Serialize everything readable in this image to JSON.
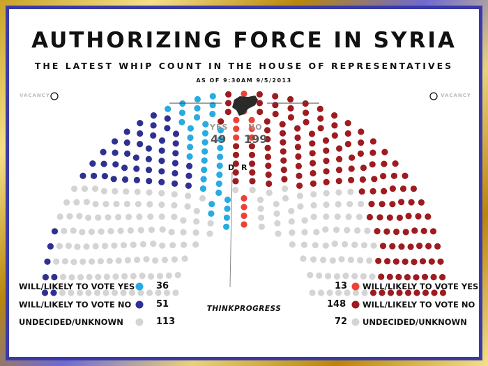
{
  "title": "AUTHORIZING FORCE IN SYRIA",
  "subtitle": "THE LATEST WHIP COUNT IN THE HOUSE OF REPRESENTATIVES",
  "as_of": "AS OF 9:30AM 9/5/2013",
  "vacancy_label": "VACANCY",
  "totals": {
    "yes_label": "YES",
    "yes_value": "49",
    "no_label": "NO",
    "no_value": "199"
  },
  "party_labels": {
    "dem": "D",
    "rep": "R"
  },
  "brand": "THINKPROGRESS",
  "colors": {
    "dem_yes": "#29abe2",
    "dem_no": "#2e3192",
    "rep_yes": "#ef4136",
    "rep_no": "#9e1b1f",
    "undecided": "#d4d4d4",
    "frame_gold": "#c9a227",
    "frame_blue": "#3a3aa8"
  },
  "chart_data": {
    "type": "parliament",
    "title": "AUTHORIZING FORCE IN SYRIA",
    "subtitle": "THE LATEST WHIP COUNT IN THE HOUSE OF REPRESENTATIVES",
    "groups": [
      {
        "party": "D",
        "label": "WILL/LIKELY TO VOTE YES",
        "value": 36,
        "color": "#29abe2"
      },
      {
        "party": "D",
        "label": "WILL/LIKELY TO VOTE NO",
        "value": 51,
        "color": "#2e3192"
      },
      {
        "party": "D",
        "label": "UNDECIDED/UNKNOWN",
        "value": 113,
        "color": "#d4d4d4"
      },
      {
        "party": "R",
        "label": "WILL/LIKELY TO VOTE YES",
        "value": 13,
        "color": "#ef4136"
      },
      {
        "party": "R",
        "label": "WILL/LIKELY TO VOTE NO",
        "value": 148,
        "color": "#9e1b1f"
      },
      {
        "party": "R",
        "label": "UNDECIDED/UNKNOWN",
        "value": 72,
        "color": "#d4d4d4"
      }
    ],
    "vacancies": 2,
    "totals": {
      "yes": 49,
      "no": 199
    }
  },
  "legend": {
    "left": [
      {
        "label": "WILL/LIKELY TO VOTE YES",
        "value": "36",
        "color": "#29abe2"
      },
      {
        "label": "WILL/LIKELY TO VOTE NO",
        "value": "51",
        "color": "#2e3192"
      },
      {
        "label": "UNDECIDED/UNKNOWN",
        "value": "113",
        "color": "#d4d4d4"
      }
    ],
    "right": [
      {
        "label": "WILL/LIKELY TO VOTE YES",
        "value": "13",
        "color": "#ef4136"
      },
      {
        "label": "WILL/LIKELY TO VOTE NO",
        "value": "148",
        "color": "#9e1b1f"
      },
      {
        "label": "UNDECIDED/UNKNOWN",
        "value": "72",
        "color": "#d4d4d4"
      }
    ]
  }
}
